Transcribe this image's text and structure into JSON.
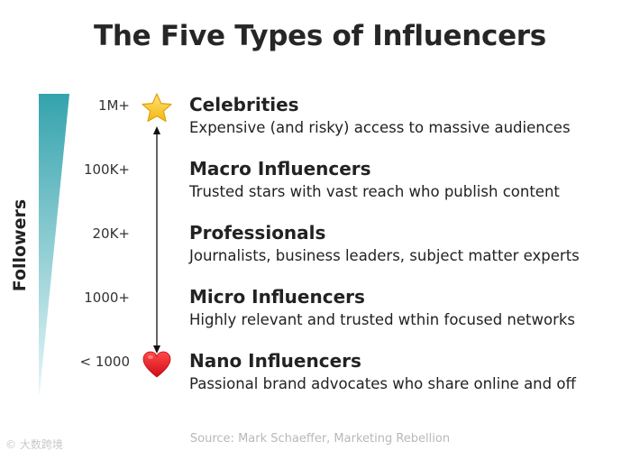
{
  "title": "The Five Types of Influencers",
  "axis_label": "Followers",
  "tiers": [
    {
      "count": "1M+",
      "name": "Celebrities",
      "description": "Expensive (and risky) access to massive audiences"
    },
    {
      "count": "100K+",
      "name": "Macro Influencers",
      "description": "Trusted stars with vast reach who publish content"
    },
    {
      "count": "20K+",
      "name": "Professionals",
      "description": "Journalists, business leaders, subject matter experts"
    },
    {
      "count": "1000+",
      "name": "Micro Influencers",
      "description": "Highly relevant and trusted wthin focused networks"
    },
    {
      "count": "< 1000",
      "name": "Nano Influencers",
      "description": "Passional brand advocates who share online and off"
    }
  ],
  "icons": {
    "top": "star-icon",
    "bottom": "heart-icon"
  },
  "colors": {
    "wedge_top": "#34a3ad",
    "wedge_bottom": "#e6f6f7",
    "star": "#f7c21a",
    "heart": "#e8141e"
  },
  "source": "Source: Mark Schaeffer, Marketing Rebellion",
  "watermark": "© 大数跨境"
}
